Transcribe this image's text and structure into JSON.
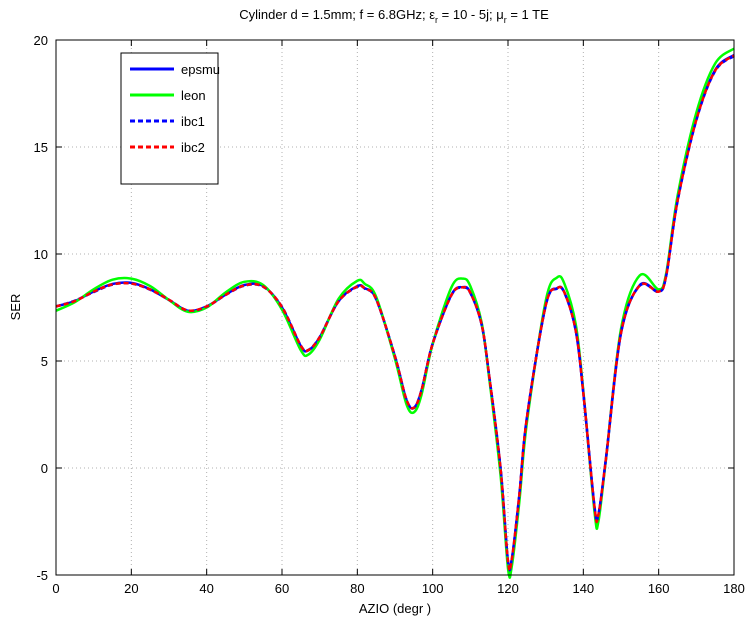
{
  "chart_data": {
    "type": "line",
    "title": "Cylinder d = 1.5mm; f = 6.8GHz; ε",
    "title_parts": {
      "prefix": "Cylinder d = 1.5mm; f = 6.8GHz; ε",
      "eps_sub": "r",
      "middle": " = 10 - 5j; μ",
      "mu_sub": "r",
      "suffix": " = 1 TE"
    },
    "xlabel": "AZIO (degr )",
    "ylabel": "SER",
    "xlim": [
      0,
      180
    ],
    "ylim": [
      -5,
      20
    ],
    "xticks": [
      "0",
      "20",
      "40",
      "60",
      "80",
      "100",
      "120",
      "140",
      "160",
      "180"
    ],
    "yticks": [
      "-5",
      "0",
      "5",
      "10",
      "15",
      "20"
    ],
    "grid": true,
    "legend_position": "upper-left",
    "x": [
      0,
      5,
      10,
      15,
      20,
      25,
      30,
      35,
      40,
      45,
      50,
      55,
      60,
      65,
      67,
      70,
      75,
      80,
      82,
      85,
      90,
      93,
      95,
      97,
      100,
      105,
      108,
      110,
      113,
      115,
      118,
      120,
      121,
      123,
      125,
      130,
      133,
      135,
      138,
      140,
      143,
      144,
      146,
      150,
      155,
      160,
      162,
      165,
      170,
      175,
      180
    ],
    "series": [
      {
        "name": "epsmu",
        "color": "#0000ff",
        "dash": "solid",
        "width": 2.5,
        "values": [
          7.55,
          7.8,
          8.25,
          8.6,
          8.65,
          8.35,
          7.85,
          7.35,
          7.55,
          8.1,
          8.55,
          8.5,
          7.5,
          5.7,
          5.5,
          6.1,
          7.8,
          8.5,
          8.4,
          7.9,
          5.2,
          3.2,
          2.8,
          3.6,
          5.8,
          8.1,
          8.45,
          8.2,
          6.7,
          4.3,
          0.0,
          -4.4,
          -4.3,
          -1.3,
          2.3,
          7.6,
          8.4,
          8.2,
          6.4,
          3.5,
          -1.9,
          -2.2,
          0.4,
          6.3,
          8.55,
          8.25,
          9.0,
          12.5,
          16.3,
          18.6,
          19.3
        ]
      },
      {
        "name": "leon",
        "color": "#00ff00",
        "dash": "solid",
        "width": 2.5,
        "values": [
          7.35,
          7.75,
          8.35,
          8.8,
          8.85,
          8.5,
          7.85,
          7.3,
          7.5,
          8.2,
          8.7,
          8.55,
          7.4,
          5.5,
          5.3,
          6.0,
          7.9,
          8.75,
          8.6,
          8.0,
          5.1,
          3.0,
          2.6,
          3.4,
          5.8,
          8.45,
          8.85,
          8.5,
          6.8,
          4.2,
          -0.3,
          -4.7,
          -4.6,
          -1.6,
          2.1,
          7.8,
          8.9,
          8.6,
          6.7,
          3.6,
          -2.1,
          -2.5,
          0.4,
          6.5,
          9.0,
          8.35,
          9.1,
          12.7,
          16.6,
          18.9,
          19.6
        ]
      },
      {
        "name": "ibc1",
        "color": "#0000ff",
        "dash": "5,3",
        "width": 2.5,
        "values": [
          7.55,
          7.82,
          8.22,
          8.57,
          8.62,
          8.33,
          7.86,
          7.36,
          7.54,
          8.08,
          8.52,
          8.47,
          7.53,
          5.72,
          5.52,
          6.12,
          7.78,
          8.47,
          8.38,
          7.88,
          5.22,
          3.22,
          2.82,
          3.62,
          5.82,
          8.08,
          8.43,
          8.18,
          6.72,
          4.32,
          0.05,
          -4.35,
          -4.25,
          -1.25,
          2.35,
          7.58,
          8.38,
          8.18,
          6.42,
          3.52,
          -1.85,
          -2.15,
          0.45,
          6.32,
          8.52,
          8.23,
          8.98,
          12.45,
          16.25,
          18.55,
          19.25
        ]
      },
      {
        "name": "ibc2",
        "color": "#ff0000",
        "dash": "5,3",
        "width": 2.5,
        "values": [
          7.55,
          7.8,
          8.24,
          8.58,
          8.62,
          8.34,
          7.86,
          7.36,
          7.55,
          8.09,
          8.53,
          8.48,
          7.52,
          5.71,
          5.51,
          6.11,
          7.79,
          8.48,
          8.39,
          7.89,
          5.21,
          3.21,
          2.81,
          3.61,
          5.81,
          8.09,
          8.44,
          8.19,
          6.71,
          4.31,
          0.02,
          -4.37,
          -4.27,
          -1.27,
          2.33,
          7.59,
          8.39,
          8.19,
          6.41,
          3.51,
          -1.87,
          -2.18,
          0.43,
          6.31,
          8.53,
          8.24,
          8.99,
          12.47,
          16.27,
          18.57,
          19.27
        ]
      }
    ]
  }
}
